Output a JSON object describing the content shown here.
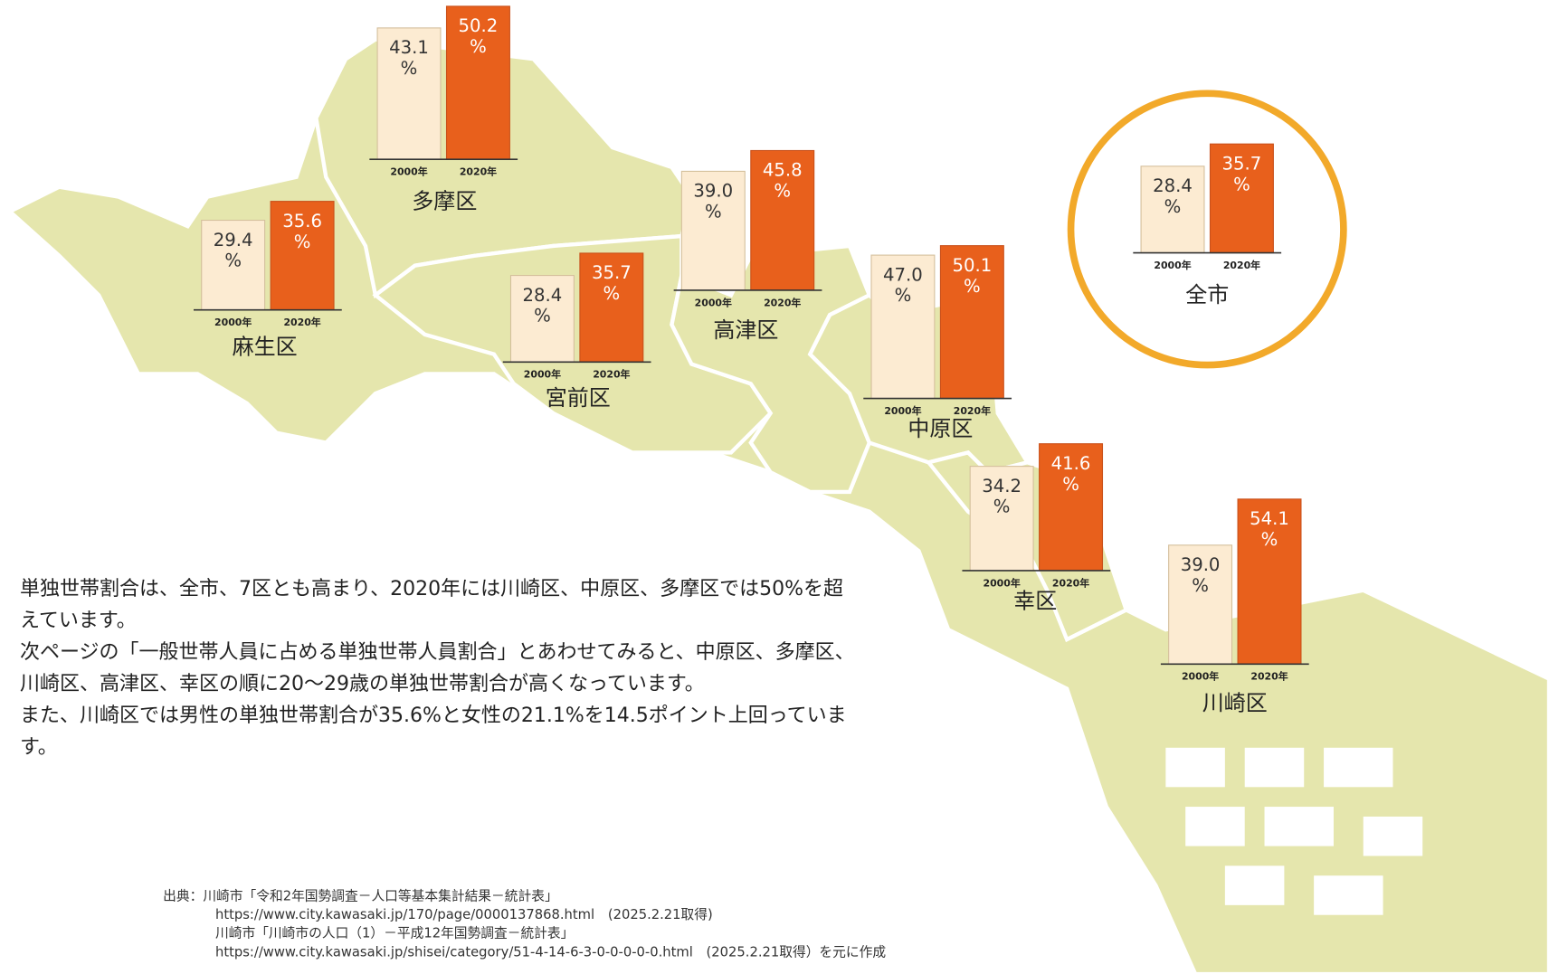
{
  "chart_data": [
    {
      "type": "bar",
      "title": "多摩区",
      "categories": [
        "2000年",
        "2020年"
      ],
      "values": [
        43.1,
        50.2
      ],
      "value_labels": [
        "43.1 %",
        "50.2 %"
      ],
      "colors": [
        "#fcebd2",
        "#e8601c"
      ]
    },
    {
      "type": "bar",
      "title": "麻生区",
      "categories": [
        "2000年",
        "2020年"
      ],
      "values": [
        29.4,
        35.6
      ],
      "value_labels": [
        "29.4 %",
        "35.6 %"
      ],
      "colors": [
        "#fcebd2",
        "#e8601c"
      ]
    },
    {
      "type": "bar",
      "title": "宮前区",
      "categories": [
        "2000年",
        "2020年"
      ],
      "values": [
        28.4,
        35.7
      ],
      "value_labels": [
        "28.4 %",
        "35.7 %"
      ],
      "colors": [
        "#fcebd2",
        "#e8601c"
      ]
    },
    {
      "type": "bar",
      "title": "高津区",
      "categories": [
        "2000年",
        "2020年"
      ],
      "values": [
        39.0,
        45.8
      ],
      "value_labels": [
        "39.0 %",
        "45.8 %"
      ],
      "colors": [
        "#fcebd2",
        "#e8601c"
      ]
    },
    {
      "type": "bar",
      "title": "中原区",
      "categories": [
        "2000年",
        "2020年"
      ],
      "values": [
        47.0,
        50.1
      ],
      "value_labels": [
        "47.0 %",
        "50.1 %"
      ],
      "colors": [
        "#fcebd2",
        "#e8601c"
      ]
    },
    {
      "type": "bar",
      "title": "幸区",
      "categories": [
        "2000年",
        "2020年"
      ],
      "values": [
        34.2,
        41.6
      ],
      "value_labels": [
        "34.2 %",
        "41.6 %"
      ],
      "colors": [
        "#fcebd2",
        "#e8601c"
      ]
    },
    {
      "type": "bar",
      "title": "川崎区",
      "categories": [
        "2000年",
        "2020年"
      ],
      "values": [
        39.0,
        54.1
      ],
      "value_labels": [
        "39.0 %",
        "54.1 %"
      ],
      "colors": [
        "#fcebd2",
        "#e8601c"
      ]
    },
    {
      "type": "bar",
      "title": "全市",
      "categories": [
        "2000年",
        "2020年"
      ],
      "values": [
        28.4,
        35.7
      ],
      "value_labels": [
        "28.4 %",
        "35.7 %"
      ],
      "colors": [
        "#fcebd2",
        "#e8601c"
      ]
    }
  ],
  "note": [
    "単独世帯割合は、全市、7区とも高まり、2020年には川崎区、中原区、多摩区では50%を超えています。",
    "次ページの「一般世帯人員に占める単独世帯人員割合」とあわせてみると、中原区、多摩区、川崎区、高津区、幸区の順に20～29歳の単独世帯割合が高くなっています。",
    "また、川崎区では男性の単独世帯割合が35.6%と女性の21.1%を14.5ポイント上回っています。"
  ],
  "source": [
    "出典：川崎市「令和2年国勢調査－人口等基本集計結果－統計表」",
    "https://www.city.kawasaki.jp/170/page/0000137868.html　(2025.2.21取得)",
    "川崎市「川崎市の人口（1）－平成12年国勢調査－統計表」",
    "https://www.city.kawasaki.jp/shisei/category/51-4-14-6-3-0-0-0-0-0.html　(2025.2.21取得）を元に作成"
  ]
}
